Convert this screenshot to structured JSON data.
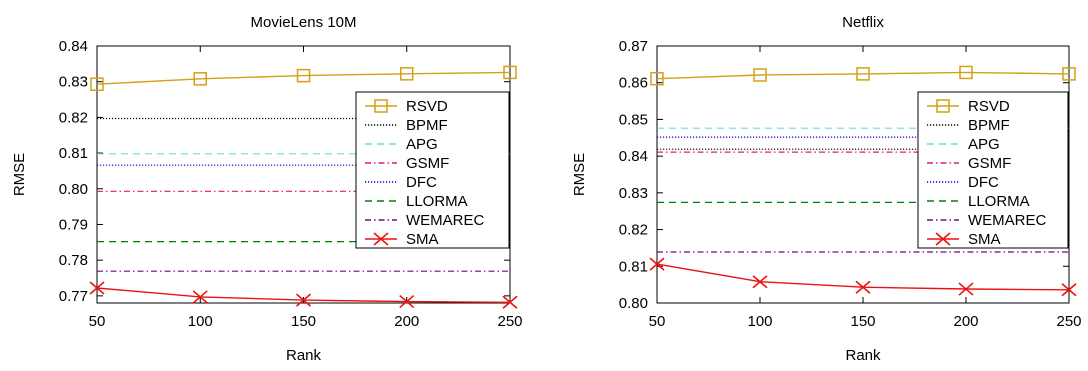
{
  "chart_data": [
    {
      "type": "line",
      "title": "MovieLens 10M",
      "xlabel": "Rank",
      "ylabel": "RMSE",
      "x": [
        50,
        100,
        150,
        200,
        250
      ],
      "xlim": [
        50,
        250
      ],
      "ylim": [
        0.768,
        0.84
      ],
      "xticks": [
        "50",
        "100",
        "150",
        "200",
        "250"
      ],
      "yticks": [
        "0.77",
        "0.78",
        "0.79",
        "0.80",
        "0.81",
        "0.82",
        "0.83",
        "0.84"
      ],
      "legend_position": "right",
      "series": [
        {
          "name": "RSVD",
          "values": [
            0.8293,
            0.8308,
            0.8317,
            0.8322,
            0.8326
          ],
          "color": "#d4a017",
          "style": "solid",
          "marker": "square"
        },
        {
          "name": "BPMF",
          "values": [
            0.8197,
            0.8197,
            0.8197,
            0.8197,
            0.8197
          ],
          "color": "#000000",
          "style": "dotted"
        },
        {
          "name": "APG",
          "values": [
            0.8098,
            0.8098,
            0.8098,
            0.8098,
            0.8098
          ],
          "color": "#66e0d0",
          "style": "dashed"
        },
        {
          "name": "GSMF",
          "values": [
            0.7993,
            0.7993,
            0.7993,
            0.7993,
            0.7993
          ],
          "color": "#e0187f",
          "style": "dashdot"
        },
        {
          "name": "DFC",
          "values": [
            0.8066,
            0.8066,
            0.8066,
            0.8066,
            0.8066
          ],
          "color": "#0000d0",
          "style": "dotted"
        },
        {
          "name": "LLORMA",
          "values": [
            0.7852,
            0.7852,
            0.7852,
            0.7852,
            0.7852
          ],
          "color": "#008000",
          "style": "dashed"
        },
        {
          "name": "WEMAREC",
          "values": [
            0.7769,
            0.7769,
            0.7769,
            0.7769,
            0.7769
          ],
          "color": "#800080",
          "style": "dashdot"
        },
        {
          "name": "SMA",
          "values": [
            0.7722,
            0.7697,
            0.7688,
            0.7684,
            0.7682
          ],
          "color": "#ee1111",
          "style": "solid",
          "marker": "x"
        }
      ]
    },
    {
      "type": "line",
      "title": "Netflix",
      "xlabel": "Rank",
      "ylabel": "RMSE",
      "x": [
        50,
        100,
        150,
        200,
        250
      ],
      "xlim": [
        50,
        250
      ],
      "ylim": [
        0.8,
        0.87
      ],
      "xticks": [
        "50",
        "100",
        "150",
        "200",
        "250"
      ],
      "yticks": [
        "0.80",
        "0.81",
        "0.82",
        "0.83",
        "0.84",
        "0.85",
        "0.86",
        "0.87"
      ],
      "legend_position": "right",
      "series": [
        {
          "name": "RSVD",
          "values": [
            0.8611,
            0.8621,
            0.8624,
            0.8628,
            0.8624
          ],
          "color": "#d4a017",
          "style": "solid",
          "marker": "square"
        },
        {
          "name": "BPMF",
          "values": [
            0.8419,
            0.8419,
            0.8419,
            0.8419,
            0.8419
          ],
          "color": "#000000",
          "style": "dotted"
        },
        {
          "name": "APG",
          "values": [
            0.8476,
            0.8476,
            0.8476,
            0.8476,
            0.8476
          ],
          "color": "#66e0d0",
          "style": "dashed"
        },
        {
          "name": "GSMF",
          "values": [
            0.8411,
            0.8411,
            0.8411,
            0.8411,
            0.8411
          ],
          "color": "#e0187f",
          "style": "dashdot"
        },
        {
          "name": "DFC",
          "values": [
            0.8452,
            0.8452,
            0.8452,
            0.8452,
            0.8452
          ],
          "color": "#0000d0",
          "style": "dotted"
        },
        {
          "name": "LLORMA",
          "values": [
            0.8274,
            0.8274,
            0.8274,
            0.8274,
            0.8274
          ],
          "color": "#008000",
          "style": "dashed"
        },
        {
          "name": "WEMAREC",
          "values": [
            0.8139,
            0.8139,
            0.8139,
            0.8139,
            0.8139
          ],
          "color": "#800080",
          "style": "dashdot"
        },
        {
          "name": "SMA",
          "values": [
            0.8106,
            0.8058,
            0.8043,
            0.8038,
            0.8036
          ],
          "color": "#ee1111",
          "style": "solid",
          "marker": "x"
        }
      ]
    }
  ]
}
